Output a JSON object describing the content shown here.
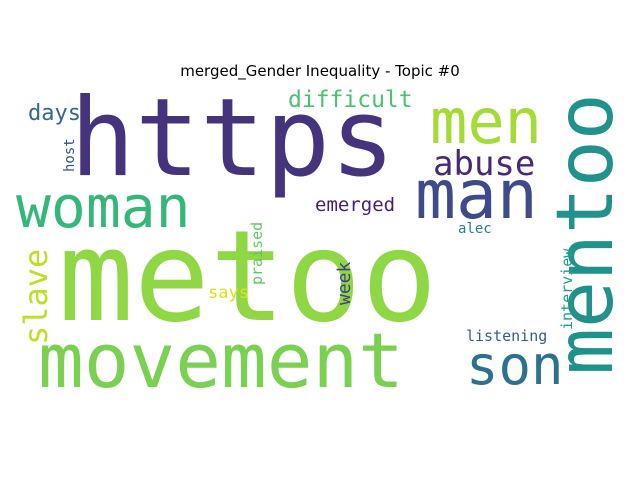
{
  "chart_data": {
    "type": "wordcloud",
    "title": "merged_Gender Inequality - Topic #0",
    "words": [
      {
        "text": "metoo",
        "color": "#8fd744",
        "weight": 100
      },
      {
        "text": "https",
        "color": "#46337e",
        "weight": 78
      },
      {
        "text": "movement",
        "color": "#7ad151",
        "weight": 62
      },
      {
        "text": "mentoo",
        "color": "#21918c",
        "weight": 58
      },
      {
        "text": "man",
        "color": "#3e4a89",
        "weight": 50
      },
      {
        "text": "woman",
        "color": "#35b779",
        "weight": 48
      },
      {
        "text": "men",
        "color": "#a5db36",
        "weight": 47
      },
      {
        "text": "son",
        "color": "#2c728e",
        "weight": 42
      },
      {
        "text": "abuse",
        "color": "#482878",
        "weight": 28
      },
      {
        "text": "slave",
        "color": "#bddf26",
        "weight": 26
      },
      {
        "text": "difficult",
        "color": "#4ac16d",
        "weight": 20
      },
      {
        "text": "days",
        "color": "#31688e",
        "weight": 19
      },
      {
        "text": "emerged",
        "color": "#481f70",
        "weight": 17
      },
      {
        "text": "week",
        "color": "#433e85",
        "weight": 15
      },
      {
        "text": "says",
        "color": "#dde318",
        "weight": 14
      },
      {
        "text": "praised",
        "color": "#5ec962",
        "weight": 13
      },
      {
        "text": "interview",
        "color": "#1f9e89",
        "weight": 13
      },
      {
        "text": "listening",
        "color": "#355f8d",
        "weight": 13
      },
      {
        "text": "alec",
        "color": "#26828e",
        "weight": 12
      },
      {
        "text": "host",
        "color": "#3b528b",
        "weight": 12
      }
    ]
  }
}
